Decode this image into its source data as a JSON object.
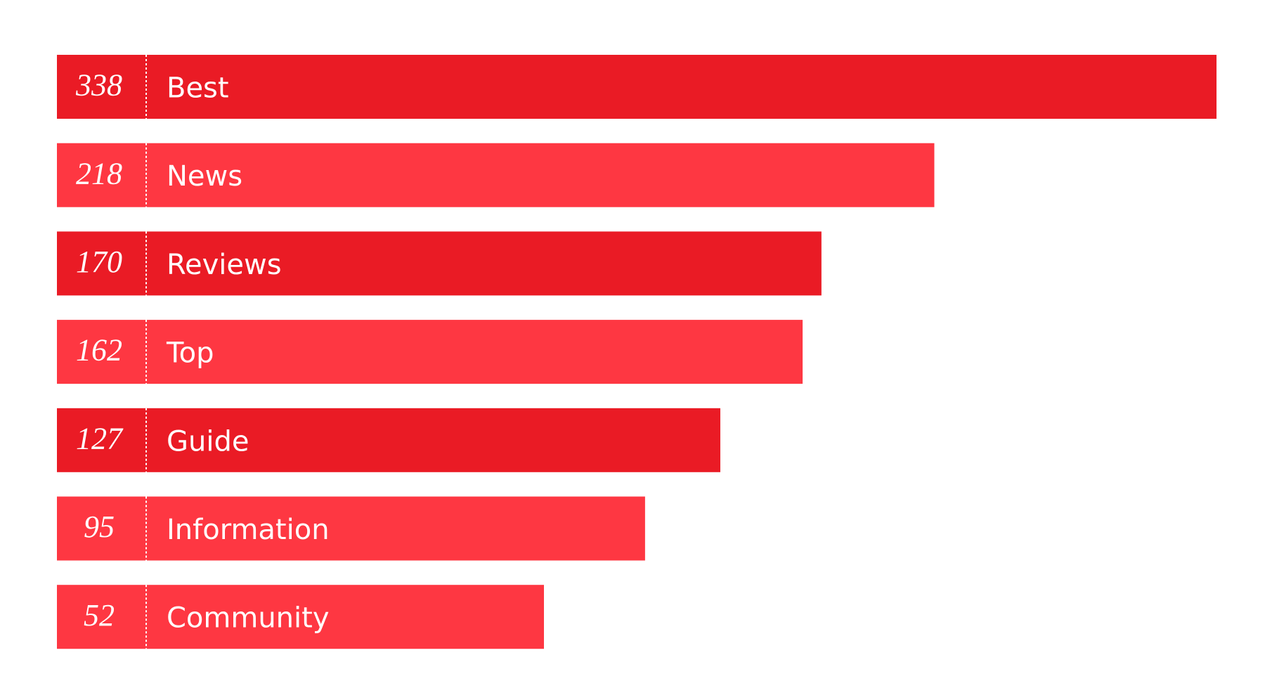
{
  "chart_data": {
    "type": "bar",
    "categories": [
      "Best",
      "News",
      "Reviews",
      "Top",
      "Guide",
      "Information",
      "Community"
    ],
    "values": [
      338,
      218,
      170,
      162,
      127,
      95,
      52
    ],
    "colors": [
      "#ea1b25",
      "#fe3742",
      "#ea1b25",
      "#fe3742",
      "#ea1b25",
      "#fe3742",
      "#fe3742"
    ]
  }
}
